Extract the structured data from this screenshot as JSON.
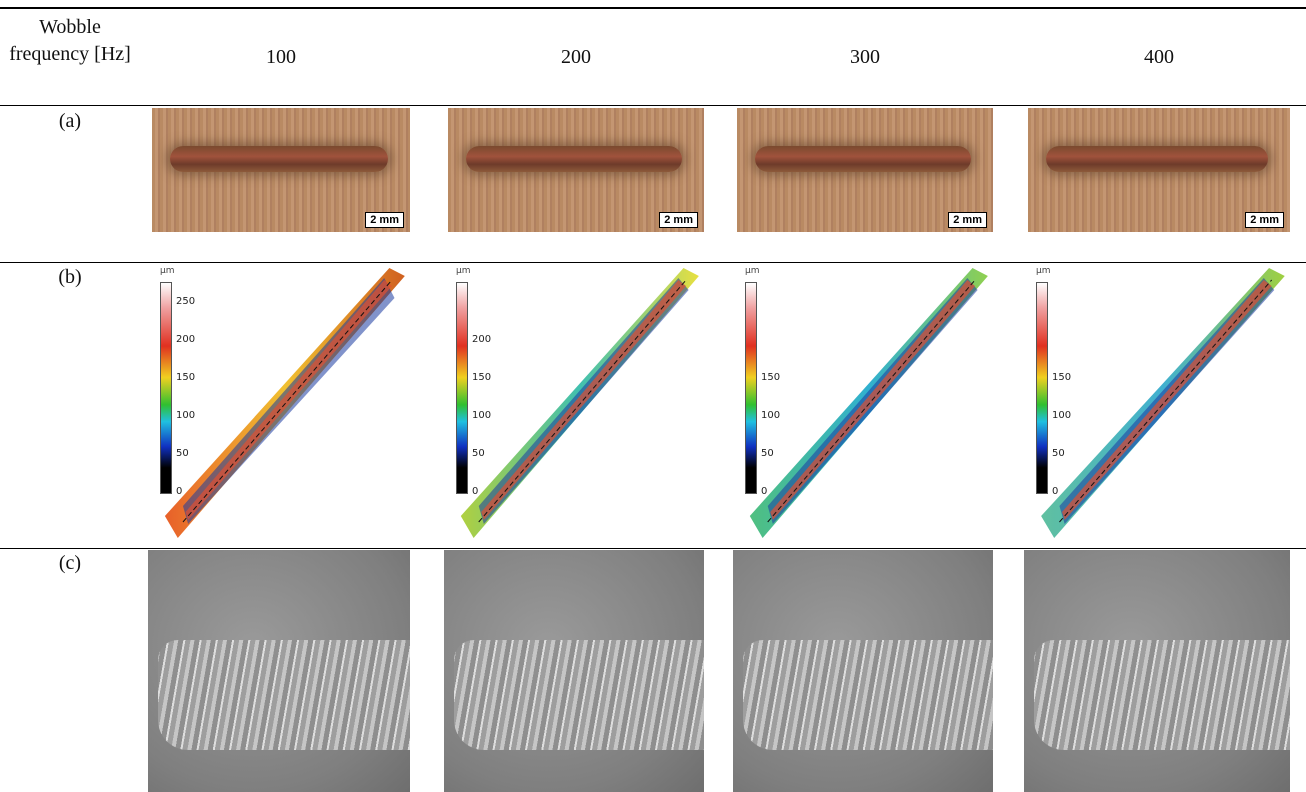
{
  "header": {
    "label": "Wobble frequency [Hz]",
    "frequencies": [
      "100",
      "200",
      "300",
      "400"
    ]
  },
  "rows": [
    {
      "label": "(a)",
      "scale_bars": [
        "2 mm",
        "2 mm",
        "2 mm",
        "2 mm"
      ]
    },
    {
      "label": "(b)",
      "colorbars": [
        {
          "unit": "µm",
          "ticks": [
            "250",
            "200",
            "150",
            "100",
            "50",
            "0"
          ]
        },
        {
          "unit": "µm",
          "ticks": [
            "200",
            "150",
            "100",
            "50",
            "0"
          ]
        },
        {
          "unit": "µm",
          "ticks": [
            "150",
            "100",
            "50",
            "0"
          ]
        },
        {
          "unit": "µm",
          "ticks": [
            "150",
            "100",
            "50",
            "0"
          ]
        }
      ]
    },
    {
      "label": "(c)"
    }
  ]
}
